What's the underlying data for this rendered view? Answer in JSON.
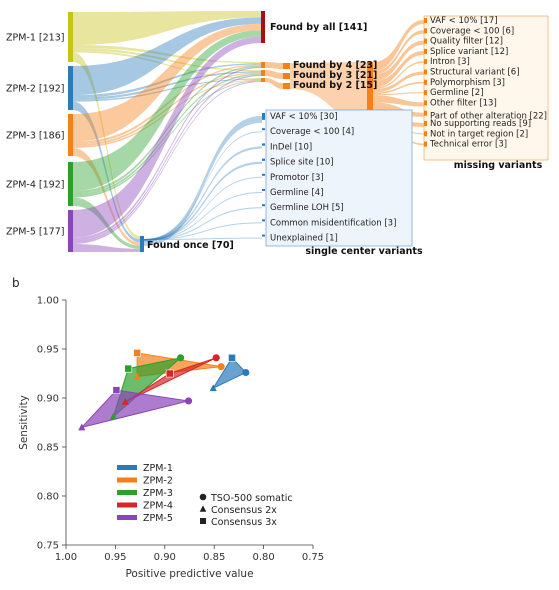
{
  "panel_b_label": "b",
  "chart_data": [
    {
      "type": "sankey",
      "sources": [
        {
          "id": "zpm1",
          "label": "ZPM-1 [213]",
          "color": "#c8c417"
        },
        {
          "id": "zpm2",
          "label": "ZPM-2 [192]",
          "color": "#2b7bba"
        },
        {
          "id": "zpm3",
          "label": "ZPM-3 [186]",
          "color": "#f57f18"
        },
        {
          "id": "zpm4",
          "label": "ZPM-4 [192]",
          "color": "#2ca02c"
        },
        {
          "id": "zpm5",
          "label": "ZPM-5 [177]",
          "color": "#8a45b9"
        }
      ],
      "middle": [
        {
          "id": "all",
          "label": "Found by all [141]",
          "color": "#a50f15"
        },
        {
          "id": "by4",
          "label": "Found by 4 [23]",
          "color": "#f57f18"
        },
        {
          "id": "by3",
          "label": "Found by 3 [21]",
          "color": "#f57f18"
        },
        {
          "id": "by2",
          "label": "Found by 2 [15]",
          "color": "#f57f18"
        },
        {
          "id": "once",
          "label": "Found once [70]",
          "color": "#2b7bba"
        }
      ],
      "missing_variants": {
        "title": "missing variants",
        "items": [
          {
            "label": "VAF < 10% [17]",
            "value": 17
          },
          {
            "label": "Coverage < 100 [6]",
            "value": 6
          },
          {
            "label": "Quality filter [12]",
            "value": 12
          },
          {
            "label": "Splice variant [12]",
            "value": 12
          },
          {
            "label": "Intron [3]",
            "value": 3
          },
          {
            "label": "Structural variant [6]",
            "value": 6
          },
          {
            "label": "Polymorphism [3]",
            "value": 3
          },
          {
            "label": "Germline [2]",
            "value": 2
          },
          {
            "label": "Other filter [13]",
            "value": 13
          },
          {
            "label": "Part of other alteration [22]",
            "value": 22
          },
          {
            "label": "No supporting reads [9]",
            "value": 9
          },
          {
            "label": "Not in target region [2]",
            "value": 2
          },
          {
            "label": "Technical error [3]",
            "value": 3
          }
        ]
      },
      "single_center_variants": {
        "title": "single center variants",
        "items": [
          {
            "label": "VAF < 10% [30]",
            "value": 30
          },
          {
            "label": "Coverage < 100 [4]",
            "value": 4
          },
          {
            "label": "InDel [10]",
            "value": 10
          },
          {
            "label": "Splice site [10]",
            "value": 10
          },
          {
            "label": "Promotor [3]",
            "value": 3
          },
          {
            "label": "Germline [4]",
            "value": 4
          },
          {
            "label": "Germline LOH [5]",
            "value": 5
          },
          {
            "label": "Common misidentification [3]",
            "value": 3
          },
          {
            "label": "Unexplained [1]",
            "value": 1
          }
        ]
      }
    },
    {
      "type": "scatter",
      "xlabel": "Positive predictive value",
      "ylabel": "Sensitivity",
      "xlim": [
        1.0,
        0.75
      ],
      "ylim": [
        0.75,
        1.0
      ],
      "xticks": [
        "1.00",
        "0.95",
        "0.90",
        "0.85",
        "0.80",
        "0.75"
      ],
      "yticks": [
        "0.75",
        "0.80",
        "0.85",
        "0.90",
        "0.95",
        "1.00"
      ],
      "legend_placement": "lower-left",
      "series": [
        {
          "name": "ZPM-1",
          "color": "#2b7bba",
          "points": {
            "somatic": [
              0.818,
              0.926
            ],
            "consensus2x": [
              0.851,
              0.91
            ],
            "consensus3x": [
              0.832,
              0.941
            ]
          }
        },
        {
          "name": "ZPM-2",
          "color": "#f57f18",
          "points": {
            "somatic": [
              0.843,
              0.932
            ],
            "consensus2x": [
              0.928,
              0.922
            ],
            "consensus3x": [
              0.928,
              0.946
            ]
          }
        },
        {
          "name": "ZPM-3",
          "color": "#2ca02c",
          "points": {
            "somatic": [
              0.884,
              0.941
            ],
            "consensus2x": [
              0.952,
              0.881
            ],
            "consensus3x": [
              0.937,
              0.93
            ]
          }
        },
        {
          "name": "ZPM-4",
          "color": "#d62728",
          "points": {
            "somatic": [
              0.848,
              0.941
            ],
            "consensus2x": [
              0.94,
              0.896
            ],
            "consensus3x": [
              0.895,
              0.925
            ]
          }
        },
        {
          "name": "ZPM-5",
          "color": "#8a45b9",
          "points": {
            "somatic": [
              0.876,
              0.897
            ],
            "consensus2x": [
              0.984,
              0.87
            ],
            "consensus3x": [
              0.949,
              0.908
            ]
          }
        }
      ],
      "marker_legend": [
        {
          "key": "somatic",
          "label": "TSO-500 somatic",
          "shape": "circle"
        },
        {
          "key": "consensus2x",
          "label": "Consensus 2x",
          "shape": "triangle"
        },
        {
          "key": "consensus3x",
          "label": "Consensus 3x",
          "shape": "square"
        }
      ]
    }
  ]
}
